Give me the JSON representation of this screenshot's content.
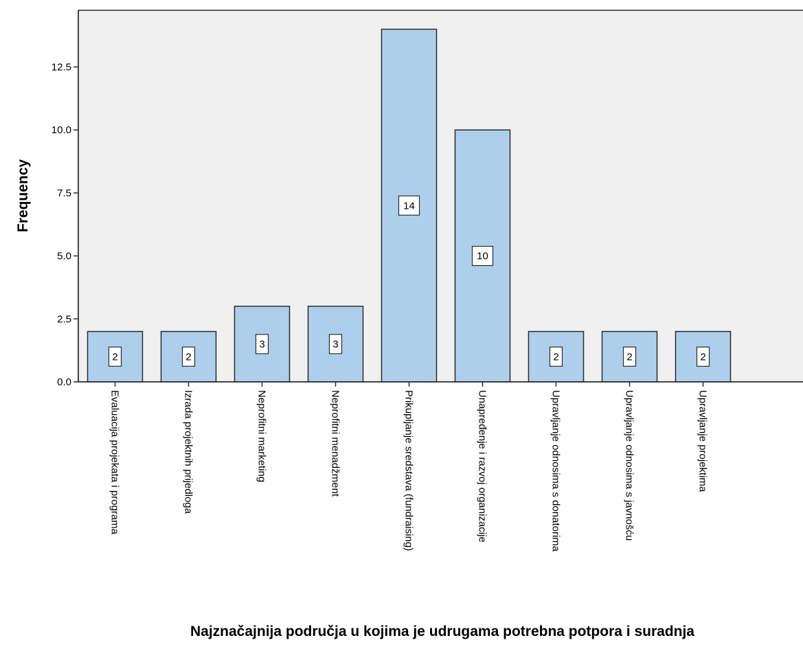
{
  "chart_data": {
    "type": "bar",
    "title": "",
    "xlabel": "Najznačajnija područja u kojima je udrugama potrebna potpora i suradnja",
    "ylabel": "Frequency",
    "categories": [
      "Evaluacija projekata i programa",
      "Izrada projektnih prijedloga",
      "Neprofitni marketing",
      "Neprofitni menadžment",
      "Prikupljanje sredstava (fundraising)",
      "Unapređenje i razvoj organizacije",
      "Upravljanje odnosima s donatorima",
      "Upravljanje odnosima s javnošću",
      "Upravljanje projektima"
    ],
    "values": [
      2,
      2,
      3,
      3,
      14,
      10,
      2,
      2,
      2
    ],
    "ylim": [
      0,
      14.75
    ],
    "yticks": [
      0,
      2.5,
      5,
      7.5,
      10,
      12.5
    ],
    "ytick_labels": [
      "0.0",
      "2.5",
      "5.0",
      "7.5",
      "10.0",
      "12.5"
    ],
    "data_labels": true,
    "grid": false,
    "legend": "none",
    "colors": {
      "bar_fill": "#AECFEC",
      "bar_stroke": "#2B2B2B",
      "plot_background": "#F0F0F0",
      "axis": "#2B2B2B"
    }
  }
}
